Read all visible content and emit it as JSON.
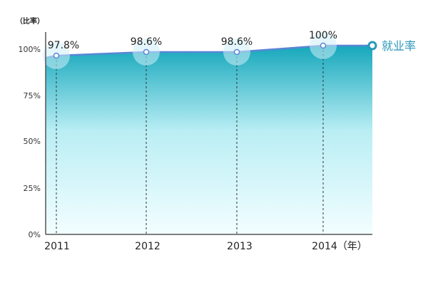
{
  "chart_data": {
    "type": "area",
    "x": [
      "2011",
      "2012",
      "2013",
      "2014"
    ],
    "x_tick_labels": [
      "2011",
      "2012",
      "2013",
      "2014（年）"
    ],
    "series": [
      {
        "name": "就业率",
        "values": [
          97.8,
          98.6,
          98.6,
          100
        ],
        "data_labels": [
          "97.8%",
          "98.6%",
          "98.6%",
          "100%"
        ]
      }
    ],
    "ylabel": "（比率）",
    "y_tick_labels": [
      "0%",
      "25%",
      "50%",
      "75%",
      "100%"
    ],
    "legend_position": "right",
    "colors": {
      "line": "#5a86d6",
      "fill_top": "#16a7bc",
      "fill_bottom": "#f3feff",
      "point_halo": "#cdeef7",
      "legend_text": "#2a97bb",
      "dropline": "#333333",
      "axis": "#555555"
    }
  }
}
